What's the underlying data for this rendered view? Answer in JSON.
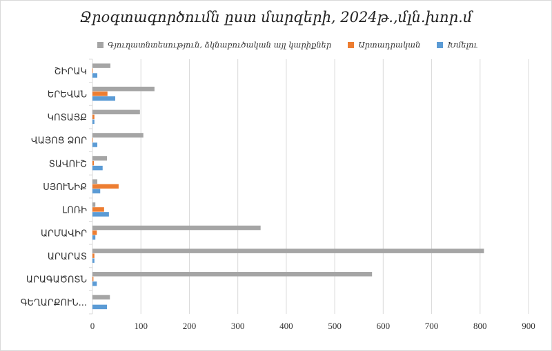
{
  "chart_data": {
    "type": "bar",
    "orientation": "horizontal",
    "title": "Ջրօգտագործումն ըստ մարզերի, 2024թ.,մլն.խոր.մ",
    "categories": [
      "ՇԻՐԱԿ",
      "ԵՐԵՎԱՆ",
      "ԿՈՏԱՅՔ",
      "ՎԱՅՈՑ ՁՈՐ",
      "ՏԱՎՈՒՇ",
      "ՍՅՈՒՆԻՔ",
      "ԼՈՌԻ",
      "ԱՐՄԱՎԻՐ",
      "ԱՐԱՐԱՏ",
      "ԱՐԱԳԱԾՈՏՆ",
      "ԳԵՂԱՐՔՈՒՆ..."
    ],
    "series": [
      {
        "name": "Գյուղատնտեսություն, ձկնաբուծական այլ կարիքներ",
        "color": "#a5a5a5",
        "values": [
          37,
          128,
          98,
          105,
          30,
          10,
          6,
          347,
          808,
          577,
          36
        ]
      },
      {
        "name": "Արտադրական",
        "color": "#ed7d31",
        "values": [
          1,
          31,
          4,
          1,
          3,
          54,
          24,
          9,
          4,
          2,
          0
        ]
      },
      {
        "name": "Խմելու",
        "color": "#5b9bd5",
        "values": [
          10,
          47,
          4,
          10,
          21,
          16,
          34,
          6,
          4,
          9,
          30
        ]
      }
    ],
    "xlim": [
      0,
      900
    ],
    "xticks": [
      "0",
      "100",
      "200",
      "300",
      "400",
      "500",
      "600",
      "700",
      "800",
      "900"
    ],
    "grid": true,
    "legend_position": "top"
  }
}
